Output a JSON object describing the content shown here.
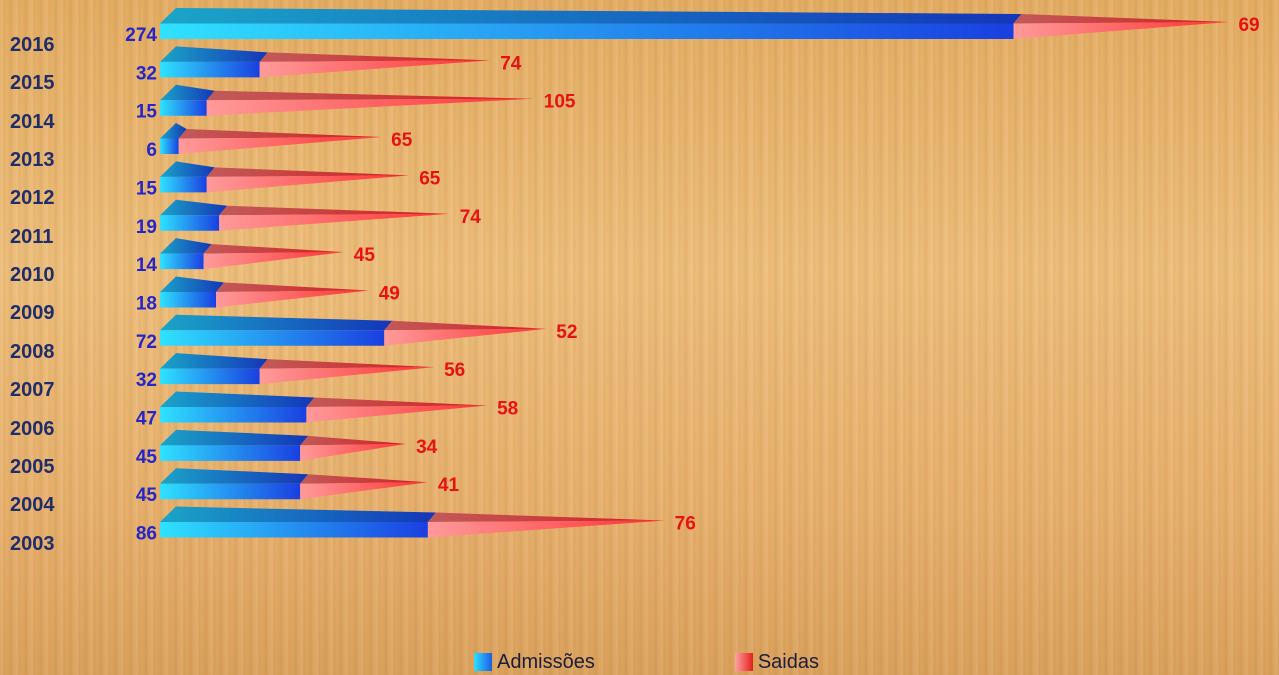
{
  "chart_data": {
    "type": "bar",
    "orientation": "horizontal",
    "stacked": true,
    "categories": [
      "2016",
      "2015",
      "2014",
      "2013",
      "2012",
      "2011",
      "2010",
      "2009",
      "2008",
      "2007",
      "2006",
      "2005",
      "2004",
      "2003"
    ],
    "series": [
      {
        "name": "Admissões",
        "values": [
          274,
          32,
          15,
          6,
          15,
          19,
          14,
          18,
          72,
          32,
          47,
          45,
          45,
          86
        ],
        "color": "#1c5ce6",
        "label_color": "#2525c8"
      },
      {
        "name": "Saidas",
        "values": [
          69,
          74,
          105,
          65,
          65,
          74,
          45,
          49,
          52,
          56,
          58,
          34,
          41,
          76
        ],
        "color": "#e2201e",
        "label_color": "#e81212"
      }
    ],
    "legend_position": "bottom",
    "grid": false
  },
  "legend": {
    "items": [
      {
        "label": "Admissões"
      },
      {
        "label": "Saidas"
      }
    ]
  }
}
